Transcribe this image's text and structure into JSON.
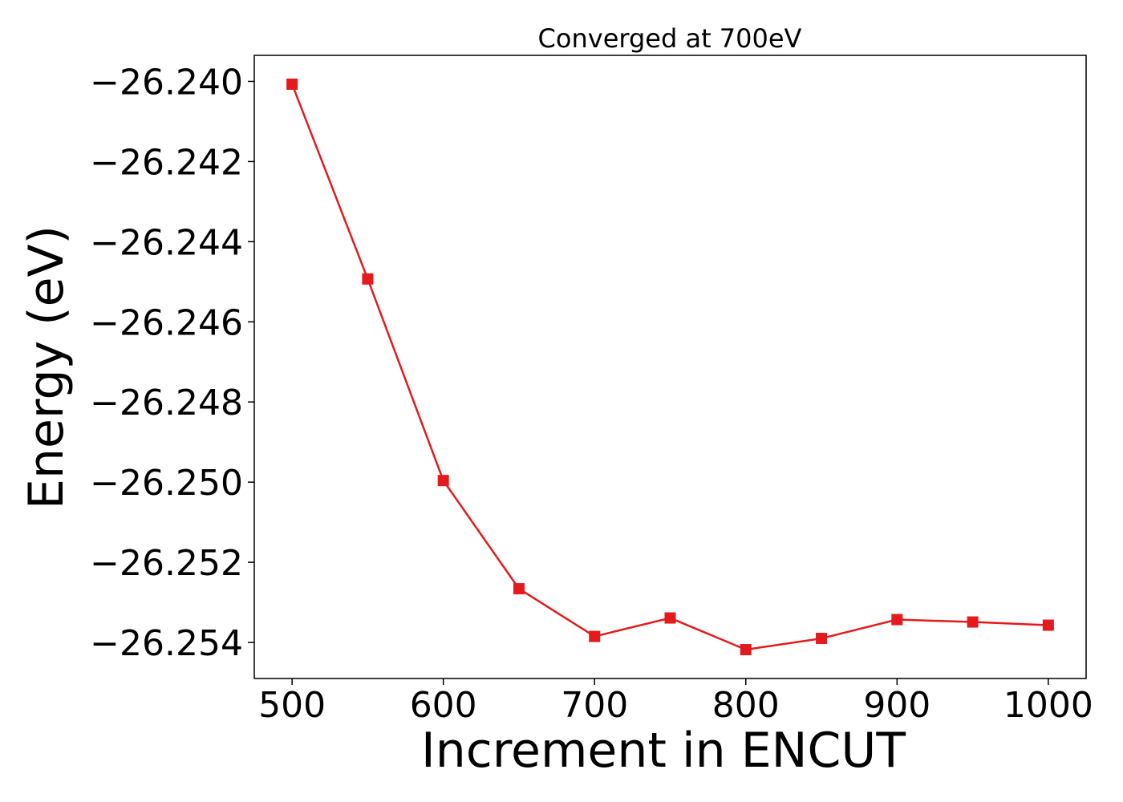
{
  "chart_data": {
    "type": "line",
    "title": "Converged at 700eV",
    "xlabel": "Increment in ENCUT",
    "ylabel": "Energy (eV)",
    "x": [
      500,
      550,
      600,
      650,
      700,
      750,
      800,
      850,
      900,
      950,
      1000
    ],
    "series": [
      {
        "values": [
          -26.24007,
          -26.24493,
          -26.24996,
          -26.25266,
          -26.25385,
          -26.25339,
          -26.25418,
          -26.2539,
          -26.25343,
          -26.25349,
          -26.25357
        ],
        "color": "#e41a1c",
        "marker": "square"
      }
    ],
    "xlim": [
      475,
      1025
    ],
    "ylim": [
      -26.2549,
      -26.23935
    ],
    "x_ticks": [
      500,
      600,
      700,
      800,
      900,
      1000
    ],
    "x_tick_labels": [
      "500",
      "600",
      "700",
      "800",
      "900",
      "1000"
    ],
    "y_ticks": [
      -26.24,
      -26.242,
      -26.244,
      -26.246,
      -26.248,
      -26.25,
      -26.252,
      -26.254
    ],
    "y_tick_labels": [
      "−26.240",
      "−26.242",
      "−26.244",
      "−26.246",
      "−26.248",
      "−26.250",
      "−26.252",
      "−26.254"
    ],
    "grid": false,
    "legend": "none"
  }
}
